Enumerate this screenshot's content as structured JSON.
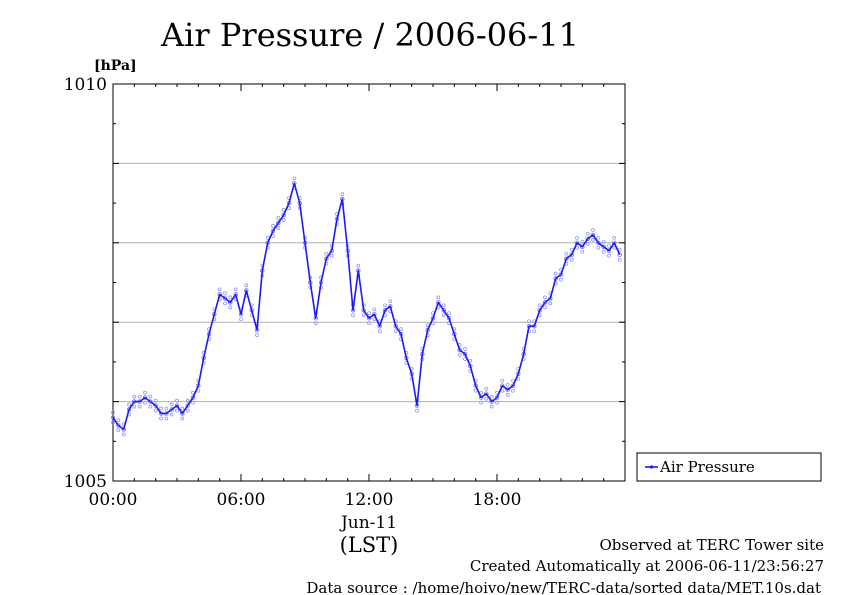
{
  "chart_data": {
    "type": "line",
    "title": "Air Pressure / 2006-06-11",
    "ylabel": "[hPa]",
    "xlabel": "(LST)",
    "date_label": "Jun-11",
    "ylim": [
      1005,
      1010
    ],
    "xlim": [
      0,
      24
    ],
    "y_ticks": [
      {
        "value": 1010,
        "label": "1010"
      },
      {
        "value": 1005,
        "label": "1005"
      }
    ],
    "y_gridlines": [
      1006,
      1007,
      1008,
      1009
    ],
    "x_ticks": [
      {
        "value": 0,
        "label": "00:00"
      },
      {
        "value": 6,
        "label": "06:00"
      },
      {
        "value": 12,
        "label": "12:00"
      },
      {
        "value": 18,
        "label": "18:00"
      }
    ],
    "legend": {
      "position": "right",
      "entries": [
        "Air Pressure"
      ]
    },
    "series": [
      {
        "name": "Air Pressure",
        "color": "#1a1aff",
        "x": [
          0.0,
          0.25,
          0.5,
          0.75,
          1.0,
          1.25,
          1.5,
          1.75,
          2.0,
          2.25,
          2.5,
          2.75,
          3.0,
          3.25,
          3.5,
          3.75,
          4.0,
          4.25,
          4.5,
          4.75,
          5.0,
          5.25,
          5.5,
          5.75,
          6.0,
          6.25,
          6.5,
          6.75,
          7.0,
          7.25,
          7.5,
          7.75,
          8.0,
          8.25,
          8.5,
          8.75,
          9.0,
          9.25,
          9.5,
          9.75,
          10.0,
          10.25,
          10.5,
          10.75,
          11.0,
          11.25,
          11.5,
          11.75,
          12.0,
          12.25,
          12.5,
          12.75,
          13.0,
          13.25,
          13.5,
          13.75,
          14.0,
          14.25,
          14.5,
          14.75,
          15.0,
          15.25,
          15.5,
          15.75,
          16.0,
          16.25,
          16.5,
          16.75,
          17.0,
          17.25,
          17.5,
          17.75,
          18.0,
          18.25,
          18.5,
          18.75,
          19.0,
          19.25,
          19.5,
          19.75,
          20.0,
          20.25,
          20.5,
          20.75,
          21.0,
          21.25,
          21.5,
          21.75,
          22.0,
          22.25,
          22.5,
          22.75,
          23.0,
          23.25,
          23.5,
          23.75
        ],
        "values": [
          1005.8,
          1005.7,
          1005.65,
          1005.9,
          1006.0,
          1006.0,
          1006.05,
          1006.0,
          1005.95,
          1005.85,
          1005.85,
          1005.9,
          1005.95,
          1005.85,
          1005.95,
          1006.05,
          1006.2,
          1006.55,
          1006.85,
          1007.1,
          1007.35,
          1007.3,
          1007.25,
          1007.35,
          1007.1,
          1007.4,
          1007.15,
          1006.9,
          1007.65,
          1008.0,
          1008.15,
          1008.25,
          1008.35,
          1008.5,
          1008.75,
          1008.5,
          1008.0,
          1007.5,
          1007.05,
          1007.5,
          1007.8,
          1007.9,
          1008.3,
          1008.55,
          1007.9,
          1007.15,
          1007.65,
          1007.15,
          1007.05,
          1007.1,
          1006.95,
          1007.15,
          1007.2,
          1006.95,
          1006.85,
          1006.55,
          1006.35,
          1005.95,
          1006.6,
          1006.9,
          1007.05,
          1007.25,
          1007.15,
          1007.05,
          1006.85,
          1006.65,
          1006.6,
          1006.45,
          1006.2,
          1006.05,
          1006.1,
          1006.0,
          1006.05,
          1006.2,
          1006.15,
          1006.2,
          1006.35,
          1006.6,
          1006.95,
          1006.95,
          1007.15,
          1007.25,
          1007.3,
          1007.55,
          1007.6,
          1007.8,
          1007.85,
          1008.0,
          1007.95,
          1008.05,
          1008.1,
          1008.0,
          1007.95,
          1007.9,
          1008.0,
          1007.85
        ]
      }
    ]
  },
  "footer": {
    "line1": "Observed at TERC Tower site",
    "line2": "Created Automatically at 2006-06-11/23:56:27",
    "line3": "Data source : /home/hoivo/new/TERC-data/sorted  data/MET.10s.dat"
  }
}
